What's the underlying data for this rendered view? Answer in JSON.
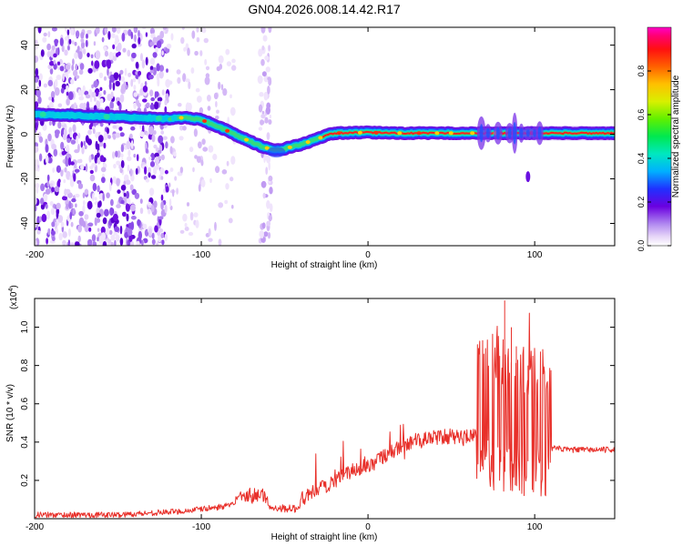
{
  "title": "GN04.2026.008.14.42.R17",
  "chart_data": [
    {
      "type": "heatmap",
      "xlabel": "Height of straight line (km)",
      "ylabel": "Frequency (Hz)",
      "xlim": [
        -200,
        148
      ],
      "ylim": [
        -50,
        48
      ],
      "xticks": [
        -200,
        -100,
        0,
        100
      ],
      "yticks": [
        -40,
        -20,
        0,
        20,
        40
      ],
      "ridge": {
        "x": [
          -200,
          -180,
          -160,
          -140,
          -120,
          -110,
          -100,
          -90,
          -80,
          -70,
          -62,
          -55,
          -50,
          -40,
          -30,
          -25,
          -20,
          0,
          20,
          40,
          60,
          80,
          100,
          110,
          148
        ],
        "y": [
          9,
          8.5,
          8,
          7.5,
          7,
          7.5,
          6.5,
          3.5,
          0,
          -3.5,
          -6,
          -7,
          -6.5,
          -4.5,
          -2,
          -0.5,
          0.5,
          0.8,
          0.5,
          0.5,
          0.5,
          0.5,
          0.5,
          0.5,
          0.5
        ]
      },
      "colorbar": {
        "label": "Normalized spectral amplitude",
        "range": [
          0,
          1
        ],
        "ticks": [
          "0.0",
          "0.2",
          "0.4",
          "0.6",
          "0.8"
        ]
      }
    },
    {
      "type": "line",
      "xlabel": "Height of straight line (km)",
      "ylabel": "SNR (10 * v/v)",
      "scale_label": "(x10",
      "scale_exponent": "4",
      "scale_suffix": ")",
      "xlim": [
        -200,
        148
      ],
      "ylim": [
        0,
        1.15
      ],
      "xticks": [
        -200,
        -100,
        0,
        100
      ],
      "yticks": [
        "0.2",
        "0.4",
        "0.6",
        "0.8",
        "1.0"
      ],
      "series": [
        {
          "name": "SNR",
          "color": "#e8302a",
          "x": [
            -200,
            -150,
            -110,
            -90,
            -75,
            -65,
            -60,
            -42,
            -40,
            -30,
            -20,
            -10,
            0,
            10,
            25,
            35,
            50,
            65,
            75,
            80,
            85,
            90,
            95,
            100,
            105,
            110,
            120,
            148
          ],
          "y": [
            0.02,
            0.02,
            0.04,
            0.06,
            0.08,
            0.1,
            0.06,
            0.05,
            0.1,
            0.15,
            0.2,
            0.25,
            0.28,
            0.33,
            0.4,
            0.42,
            0.43,
            0.43,
            0.42,
            0.4,
            0.38,
            0.37,
            0.36,
            0.37,
            0.38,
            0.37,
            0.36,
            0.36
          ]
        }
      ]
    }
  ]
}
